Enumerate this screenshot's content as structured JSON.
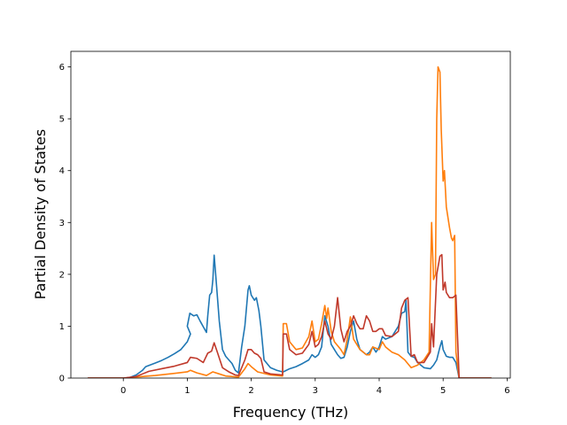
{
  "chart_data": {
    "type": "line",
    "title": "",
    "xlabel": "Frequency (THz)",
    "ylabel": "Partial Density of States",
    "xlim": [
      -0.82,
      6.05
    ],
    "ylim": [
      0,
      6.3
    ],
    "xticks": [
      0,
      1,
      2,
      3,
      4,
      5,
      6
    ],
    "yticks": [
      0,
      1,
      2,
      3,
      4,
      5,
      6
    ],
    "grid": false,
    "legend": "none",
    "series": [
      {
        "color": "#1f77b4",
        "points": [
          [
            -0.55,
            0
          ],
          [
            0,
            0
          ],
          [
            0.1,
            0.01
          ],
          [
            0.2,
            0.06
          ],
          [
            0.3,
            0.15
          ],
          [
            0.35,
            0.22
          ],
          [
            0.5,
            0.29
          ],
          [
            0.6,
            0.34
          ],
          [
            0.7,
            0.4
          ],
          [
            0.8,
            0.47
          ],
          [
            0.9,
            0.55
          ],
          [
            1.0,
            0.7
          ],
          [
            1.05,
            0.85
          ],
          [
            1.0,
            1.0
          ],
          [
            1.04,
            1.25
          ],
          [
            1.1,
            1.2
          ],
          [
            1.15,
            1.22
          ],
          [
            1.2,
            1.1
          ],
          [
            1.3,
            0.88
          ],
          [
            1.32,
            1.2
          ],
          [
            1.35,
            1.6
          ],
          [
            1.38,
            1.65
          ],
          [
            1.4,
            1.9
          ],
          [
            1.42,
            2.37
          ],
          [
            1.45,
            1.9
          ],
          [
            1.5,
            1.1
          ],
          [
            1.55,
            0.55
          ],
          [
            1.6,
            0.42
          ],
          [
            1.7,
            0.28
          ],
          [
            1.75,
            0.15
          ],
          [
            1.8,
            0.1
          ],
          [
            1.85,
            0.6
          ],
          [
            1.9,
            1.0
          ],
          [
            1.95,
            1.7
          ],
          [
            1.97,
            1.78
          ],
          [
            2.0,
            1.6
          ],
          [
            2.05,
            1.5
          ],
          [
            2.08,
            1.55
          ],
          [
            2.12,
            1.3
          ],
          [
            2.15,
            1.0
          ],
          [
            2.2,
            0.35
          ],
          [
            2.3,
            0.2
          ],
          [
            2.4,
            0.15
          ],
          [
            2.49,
            0.12
          ],
          [
            2.5,
            0.12
          ],
          [
            2.6,
            0.18
          ],
          [
            2.7,
            0.22
          ],
          [
            2.8,
            0.28
          ],
          [
            2.9,
            0.35
          ],
          [
            2.95,
            0.45
          ],
          [
            3.0,
            0.4
          ],
          [
            3.05,
            0.45
          ],
          [
            3.1,
            0.6
          ],
          [
            3.15,
            1.2
          ],
          [
            3.2,
            1.0
          ],
          [
            3.25,
            0.65
          ],
          [
            3.3,
            0.55
          ],
          [
            3.35,
            0.45
          ],
          [
            3.4,
            0.38
          ],
          [
            3.45,
            0.4
          ],
          [
            3.5,
            0.6
          ],
          [
            3.55,
            0.9
          ],
          [
            3.6,
            1.1
          ],
          [
            3.65,
            0.75
          ],
          [
            3.7,
            0.55
          ],
          [
            3.8,
            0.45
          ],
          [
            3.85,
            0.5
          ],
          [
            3.9,
            0.6
          ],
          [
            3.95,
            0.5
          ],
          [
            4.0,
            0.6
          ],
          [
            4.05,
            0.8
          ],
          [
            4.1,
            0.75
          ],
          [
            4.2,
            0.8
          ],
          [
            4.3,
            1.0
          ],
          [
            4.35,
            1.25
          ],
          [
            4.4,
            1.28
          ],
          [
            4.42,
            1.5
          ],
          [
            4.45,
            0.5
          ],
          [
            4.5,
            0.42
          ],
          [
            4.55,
            0.4
          ],
          [
            4.6,
            0.3
          ],
          [
            4.7,
            0.2
          ],
          [
            4.8,
            0.18
          ],
          [
            4.85,
            0.25
          ],
          [
            4.9,
            0.35
          ],
          [
            4.95,
            0.6
          ],
          [
            4.98,
            0.72
          ],
          [
            5.0,
            0.55
          ],
          [
            5.05,
            0.42
          ],
          [
            5.1,
            0.4
          ],
          [
            5.15,
            0.4
          ],
          [
            5.2,
            0.3
          ],
          [
            5.25,
            0
          ],
          [
            5.75,
            0
          ]
        ]
      },
      {
        "color": "#ff7f0e",
        "points": [
          [
            -0.55,
            0
          ],
          [
            0,
            0
          ],
          [
            0.2,
            0.02
          ],
          [
            0.5,
            0.05
          ],
          [
            0.8,
            0.09
          ],
          [
            1.0,
            0.12
          ],
          [
            1.05,
            0.15
          ],
          [
            1.15,
            0.1
          ],
          [
            1.3,
            0.05
          ],
          [
            1.4,
            0.12
          ],
          [
            1.5,
            0.08
          ],
          [
            1.6,
            0.04
          ],
          [
            1.8,
            0.02
          ],
          [
            1.9,
            0.18
          ],
          [
            1.95,
            0.28
          ],
          [
            2.0,
            0.22
          ],
          [
            2.1,
            0.12
          ],
          [
            2.3,
            0.06
          ],
          [
            2.49,
            0.04
          ],
          [
            2.5,
            1.05
          ],
          [
            2.55,
            1.05
          ],
          [
            2.6,
            0.7
          ],
          [
            2.7,
            0.55
          ],
          [
            2.8,
            0.58
          ],
          [
            2.9,
            0.8
          ],
          [
            2.95,
            1.1
          ],
          [
            3.0,
            0.7
          ],
          [
            3.05,
            0.75
          ],
          [
            3.1,
            1.05
          ],
          [
            3.15,
            1.4
          ],
          [
            3.18,
            1.15
          ],
          [
            3.2,
            1.35
          ],
          [
            3.25,
            0.9
          ],
          [
            3.3,
            0.7
          ],
          [
            3.4,
            0.55
          ],
          [
            3.45,
            0.45
          ],
          [
            3.5,
            0.75
          ],
          [
            3.55,
            1.18
          ],
          [
            3.6,
            0.75
          ],
          [
            3.7,
            0.55
          ],
          [
            3.8,
            0.45
          ],
          [
            3.85,
            0.45
          ],
          [
            3.9,
            0.6
          ],
          [
            4.0,
            0.55
          ],
          [
            4.05,
            0.7
          ],
          [
            4.1,
            0.6
          ],
          [
            4.2,
            0.5
          ],
          [
            4.3,
            0.45
          ],
          [
            4.4,
            0.35
          ],
          [
            4.5,
            0.2
          ],
          [
            4.6,
            0.25
          ],
          [
            4.7,
            0.35
          ],
          [
            4.78,
            0.5
          ],
          [
            4.82,
            3.0
          ],
          [
            4.85,
            1.9
          ],
          [
            4.88,
            2.0
          ],
          [
            4.9,
            5.0
          ],
          [
            4.92,
            6.0
          ],
          [
            4.95,
            5.9
          ],
          [
            4.97,
            4.8
          ],
          [
            5.0,
            3.8
          ],
          [
            5.02,
            4.0
          ],
          [
            5.05,
            3.3
          ],
          [
            5.1,
            2.9
          ],
          [
            5.13,
            2.7
          ],
          [
            5.15,
            2.65
          ],
          [
            5.18,
            2.75
          ],
          [
            5.2,
            0.5
          ],
          [
            5.25,
            0
          ],
          [
            5.75,
            0
          ]
        ]
      },
      {
        "color": "#c0392b",
        "points": [
          [
            -0.55,
            0
          ],
          [
            0,
            0
          ],
          [
            0.2,
            0.03
          ],
          [
            0.3,
            0.08
          ],
          [
            0.4,
            0.13
          ],
          [
            0.6,
            0.18
          ],
          [
            0.8,
            0.23
          ],
          [
            1.0,
            0.3
          ],
          [
            1.05,
            0.4
          ],
          [
            1.15,
            0.38
          ],
          [
            1.25,
            0.3
          ],
          [
            1.32,
            0.48
          ],
          [
            1.38,
            0.52
          ],
          [
            1.42,
            0.68
          ],
          [
            1.47,
            0.5
          ],
          [
            1.55,
            0.2
          ],
          [
            1.65,
            0.12
          ],
          [
            1.75,
            0.06
          ],
          [
            1.8,
            0.05
          ],
          [
            1.9,
            0.35
          ],
          [
            1.95,
            0.55
          ],
          [
            2.0,
            0.55
          ],
          [
            2.05,
            0.48
          ],
          [
            2.1,
            0.45
          ],
          [
            2.15,
            0.38
          ],
          [
            2.2,
            0.12
          ],
          [
            2.3,
            0.08
          ],
          [
            2.49,
            0.06
          ],
          [
            2.5,
            0.85
          ],
          [
            2.55,
            0.85
          ],
          [
            2.6,
            0.55
          ],
          [
            2.7,
            0.45
          ],
          [
            2.8,
            0.48
          ],
          [
            2.9,
            0.65
          ],
          [
            2.95,
            0.9
          ],
          [
            3.0,
            0.6
          ],
          [
            3.05,
            0.65
          ],
          [
            3.1,
            0.8
          ],
          [
            3.15,
            1.1
          ],
          [
            3.2,
            0.85
          ],
          [
            3.25,
            0.75
          ],
          [
            3.3,
            1.0
          ],
          [
            3.35,
            1.55
          ],
          [
            3.4,
            0.95
          ],
          [
            3.45,
            0.7
          ],
          [
            3.5,
            0.9
          ],
          [
            3.55,
            1.0
          ],
          [
            3.6,
            1.2
          ],
          [
            3.65,
            1.05
          ],
          [
            3.7,
            0.95
          ],
          [
            3.75,
            0.95
          ],
          [
            3.8,
            1.2
          ],
          [
            3.85,
            1.1
          ],
          [
            3.9,
            0.9
          ],
          [
            3.95,
            0.9
          ],
          [
            4.0,
            0.95
          ],
          [
            4.05,
            0.95
          ],
          [
            4.1,
            0.82
          ],
          [
            4.2,
            0.8
          ],
          [
            4.3,
            0.9
          ],
          [
            4.35,
            1.35
          ],
          [
            4.4,
            1.5
          ],
          [
            4.45,
            1.55
          ],
          [
            4.5,
            0.42
          ],
          [
            4.55,
            0.45
          ],
          [
            4.6,
            0.3
          ],
          [
            4.7,
            0.3
          ],
          [
            4.8,
            0.5
          ],
          [
            4.82,
            1.05
          ],
          [
            4.85,
            0.6
          ],
          [
            4.9,
            2.0
          ],
          [
            4.95,
            2.35
          ],
          [
            4.98,
            2.38
          ],
          [
            5.0,
            1.7
          ],
          [
            5.03,
            1.85
          ],
          [
            5.05,
            1.65
          ],
          [
            5.1,
            1.55
          ],
          [
            5.15,
            1.55
          ],
          [
            5.2,
            1.6
          ],
          [
            5.25,
            0
          ],
          [
            5.75,
            0
          ]
        ]
      }
    ]
  }
}
